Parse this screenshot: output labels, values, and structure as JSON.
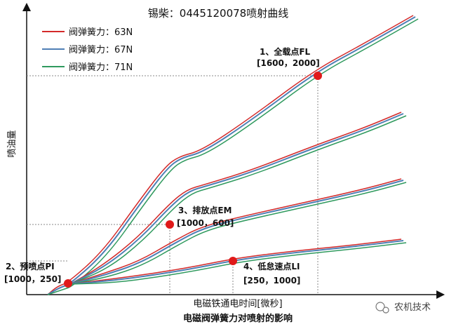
{
  "chart_data": {
    "type": "line",
    "title": "锡柴：0445120078喷射曲线",
    "xlabel": "电磁铁通电时间[微秒]",
    "ylabel": "喷油量",
    "caption": "电磁阀弹簧力对喷射的影响",
    "watermark": "农机技术",
    "legend_position": "top-left",
    "grid": false,
    "series_style": [
      {
        "name": "阀弹簧力：63N",
        "color": "#d42a2a"
      },
      {
        "name": "阀弹簧力：67N",
        "color": "#4f7fb5"
      },
      {
        "name": "阀弹簧力：71N",
        "color": "#2f9a5e"
      }
    ],
    "points": [
      {
        "line1": "1、全载点FL",
        "line2": "[1600，2000]",
        "x": 1600,
        "y": 2000
      },
      {
        "line1": "3、排放点EM",
        "line2": "[1000，600]",
        "x": 1000,
        "y": 600
      },
      {
        "line1": "2、预喷点PI",
        "line2": "[1000，250]",
        "x": 1000,
        "y": 250
      },
      {
        "line1": "4、低怠速点LI",
        "line2": "[250，1000]",
        "x": 250,
        "y": 1000
      }
    ]
  }
}
